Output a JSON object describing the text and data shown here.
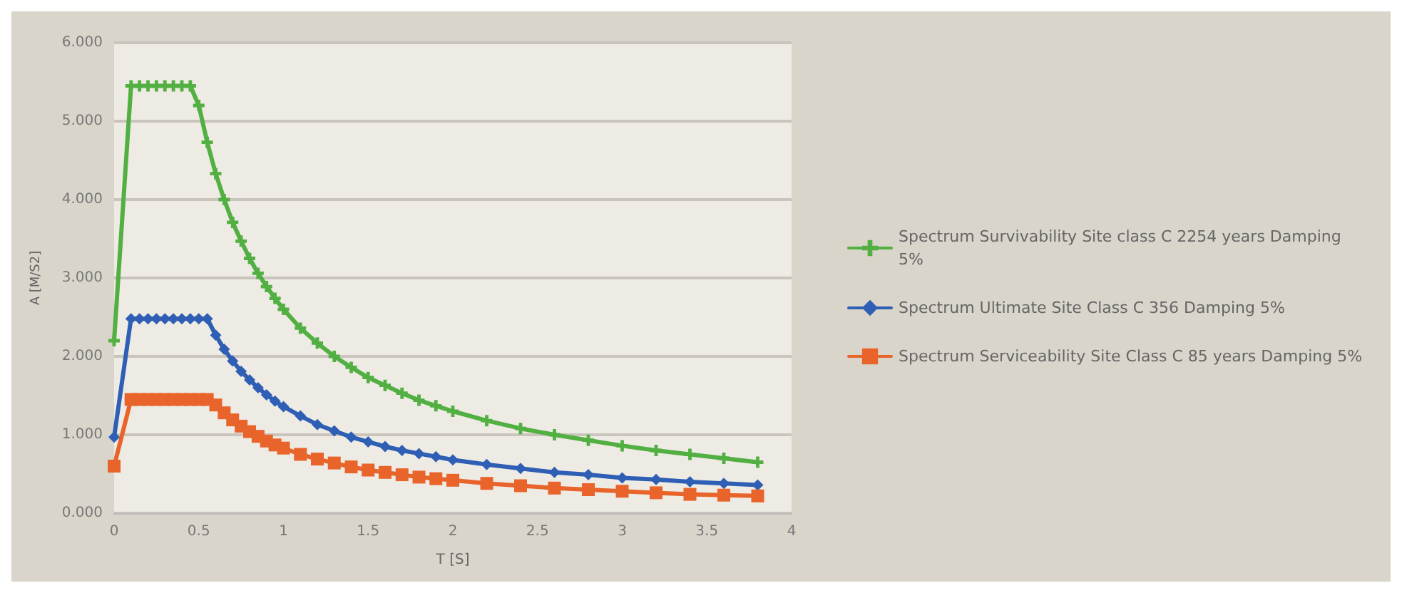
{
  "chart_data": {
    "type": "line",
    "xlabel": "T [S]",
    "ylabel": "A [M/S2]",
    "x": [
      0,
      0.1,
      0.15,
      0.2,
      0.25,
      0.3,
      0.35,
      0.4,
      0.45,
      0.5,
      0.55,
      0.6,
      0.65,
      0.7,
      0.75,
      0.8,
      0.85,
      0.9,
      0.95,
      1.0,
      1.1,
      1.2,
      1.3,
      1.4,
      1.5,
      1.6,
      1.7,
      1.8,
      1.9,
      2.0,
      2.2,
      2.4,
      2.6,
      2.8,
      3.0,
      3.2,
      3.4,
      3.6,
      3.8
    ],
    "series": [
      {
        "name": "Spectrum Survivability Site class C 2254 years Damping 5%",
        "color": "#52b043",
        "marker": "cross",
        "values": [
          2.2,
          5.45,
          5.45,
          5.45,
          5.45,
          5.45,
          5.45,
          5.45,
          5.45,
          5.2,
          4.73,
          4.33,
          4.0,
          3.71,
          3.47,
          3.25,
          3.06,
          2.89,
          2.74,
          2.6,
          2.36,
          2.17,
          2.0,
          1.86,
          1.73,
          1.63,
          1.53,
          1.44,
          1.37,
          1.3,
          1.18,
          1.08,
          1.0,
          0.93,
          0.86,
          0.8,
          0.75,
          0.7,
          0.65
        ]
      },
      {
        "name": "Spectrum Ultimate Site Class C 356 Damping 5%",
        "color": "#2e5fb5",
        "marker": "diamond",
        "values": [
          0.97,
          2.48,
          2.48,
          2.48,
          2.48,
          2.48,
          2.48,
          2.48,
          2.48,
          2.48,
          2.48,
          2.27,
          2.09,
          1.94,
          1.81,
          1.7,
          1.6,
          1.51,
          1.43,
          1.36,
          1.24,
          1.13,
          1.05,
          0.97,
          0.91,
          0.85,
          0.8,
          0.76,
          0.72,
          0.68,
          0.62,
          0.57,
          0.52,
          0.49,
          0.45,
          0.43,
          0.4,
          0.38,
          0.36
        ]
      },
      {
        "name": "Spectrum Serviceability Site Class C 85 years Damping 5%",
        "color": "#e8642a",
        "marker": "square",
        "values": [
          0.6,
          1.45,
          1.45,
          1.45,
          1.45,
          1.45,
          1.45,
          1.45,
          1.45,
          1.45,
          1.45,
          1.38,
          1.28,
          1.19,
          1.11,
          1.04,
          0.98,
          0.92,
          0.87,
          0.83,
          0.75,
          0.69,
          0.64,
          0.59,
          0.55,
          0.52,
          0.49,
          0.46,
          0.44,
          0.42,
          0.38,
          0.35,
          0.32,
          0.3,
          0.28,
          0.26,
          0.24,
          0.23,
          0.22
        ]
      }
    ],
    "xlim": [
      0,
      4
    ],
    "xticks": [
      0,
      0.5,
      1,
      1.5,
      2,
      2.5,
      3,
      3.5,
      4
    ],
    "ylim": [
      0,
      6
    ],
    "yticks": [
      {
        "value": 0,
        "label": "0.000"
      },
      {
        "value": 1,
        "label": "1.000"
      },
      {
        "value": 2,
        "label": "2.000"
      },
      {
        "value": 3,
        "label": "3.000"
      },
      {
        "value": 4,
        "label": "4.000"
      },
      {
        "value": 5,
        "label": "5.000"
      },
      {
        "value": 6,
        "label": "6.000"
      }
    ],
    "grid": "y",
    "legend": "right"
  }
}
